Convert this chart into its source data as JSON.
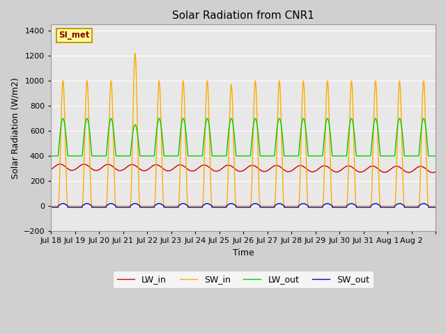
{
  "title": "Solar Radiation from CNR1",
  "xlabel": "Time",
  "ylabel": "Solar Radiation (W/m2)",
  "ylim": [
    -200,
    1450
  ],
  "yticks": [
    -200,
    0,
    200,
    400,
    600,
    800,
    1000,
    1200,
    1400
  ],
  "fig_bg": "#d0d0d0",
  "axes_bg": "#e8e8e8",
  "line_colors": {
    "LW_in": "#cc0000",
    "SW_in": "#ffaa00",
    "LW_out": "#00cc00",
    "SW_out": "#0000cc"
  },
  "annotation_text": "SI_met",
  "annotation_bg": "#ffff99",
  "annotation_border": "#cc9900",
  "n_days": 16,
  "n_points_per_day": 288,
  "SW_in_peak": 1000,
  "SW_in_spike_day": 3,
  "SW_in_spike_peak": 1220,
  "LW_out_baseline": 400,
  "LW_out_peak_add": 300,
  "LW_in_mean": 310,
  "LW_in_amplitude": 25,
  "SW_out_amplitude": 20,
  "xtick_labels": [
    "Jul 18",
    "Jul 19",
    "Jul 20",
    "Jul 21",
    "Jul 22",
    "Jul 23",
    "Jul 24",
    "Jul 25",
    "Jul 26",
    "Jul 27",
    "Jul 28",
    "Jul 29",
    "Jul 30",
    "Jul 31",
    "Aug 1",
    "Aug 2"
  ],
  "legend_labels": [
    "LW_in",
    "SW_in",
    "LW_out",
    "SW_out"
  ]
}
